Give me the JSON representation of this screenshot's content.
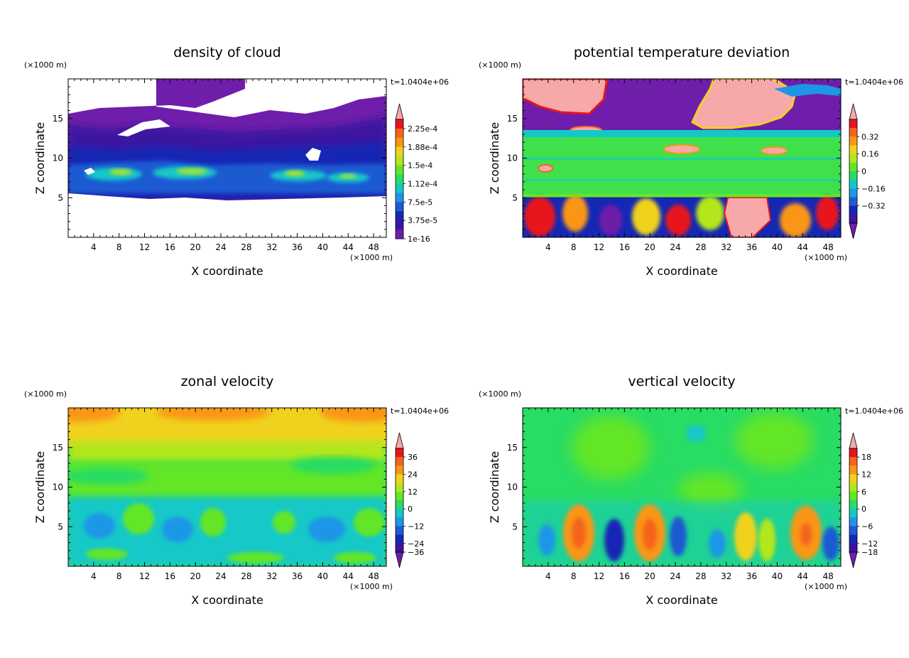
{
  "chart_data": [
    {
      "type": "heatmap",
      "title": "density of cloud",
      "xlabel": "X coordinate",
      "ylabel": "Z coordinate",
      "x_unit": "(×1000 m)",
      "y_unit": "(×1000 m)",
      "time_label": "t=1.0404e+06",
      "xlim": [
        0,
        50
      ],
      "ylim": [
        0,
        20
      ],
      "x_ticks": [
        4,
        8,
        12,
        16,
        20,
        24,
        28,
        32,
        36,
        40,
        44,
        48
      ],
      "y_ticks": [
        5,
        10,
        15
      ],
      "colorbar_labels": [
        "2.25e-4",
        "1.88e-4",
        "1.5e-4",
        "1.12e-4",
        "7.5e-5",
        "3.75e-5",
        "1e-16"
      ],
      "colorbar_colors": [
        "#f7a8a8",
        "#e8141e",
        "#f5641e",
        "#fa9614",
        "#f0d21e",
        "#b4e61e",
        "#64e628",
        "#28dc64",
        "#14c8c8",
        "#1e96e6",
        "#1e5ad2",
        "#1428b4",
        "#3c14a0",
        "#6e1eaa"
      ],
      "colorbar_arrow_bottom": false,
      "has_white_background": true
    },
    {
      "type": "heatmap",
      "title": "potential temperature deviation",
      "xlabel": "X coordinate",
      "ylabel": "Z coordinate",
      "x_unit": "(×1000 m)",
      "y_unit": "(×1000 m)",
      "time_label": "t=1.0404e+06",
      "xlim": [
        0,
        50
      ],
      "ylim": [
        0,
        20
      ],
      "x_ticks": [
        4,
        8,
        12,
        16,
        20,
        24,
        28,
        32,
        36,
        40,
        44,
        48
      ],
      "y_ticks": [
        5,
        10,
        15
      ],
      "colorbar_labels": [
        "0.32",
        "0.16",
        "0",
        "−0.16",
        "−0.32"
      ],
      "colorbar_colors": [
        "#f7a8a8",
        "#e8141e",
        "#f5641e",
        "#fa9614",
        "#f0d21e",
        "#b4e61e",
        "#64e628",
        "#28dc64",
        "#14c8c8",
        "#1e96e6",
        "#1e5ad2",
        "#1428b4",
        "#3c14a0",
        "#6e1eaa"
      ],
      "colorbar_arrow_bottom": true
    },
    {
      "type": "heatmap",
      "title": "zonal velocity",
      "xlabel": "X coordinate",
      "ylabel": "Z coordinate",
      "x_unit": "(×1000 m)",
      "y_unit": "(×1000 m)",
      "time_label": "t=1.0404e+06",
      "xlim": [
        0,
        50
      ],
      "ylim": [
        0,
        20
      ],
      "x_ticks": [
        4,
        8,
        12,
        16,
        20,
        24,
        28,
        32,
        36,
        40,
        44,
        48
      ],
      "y_ticks": [
        5,
        10,
        15
      ],
      "colorbar_labels": [
        "36",
        "24",
        "12",
        "0",
        "−12",
        "−24",
        "−36"
      ],
      "colorbar_colors": [
        "#f7a8a8",
        "#e8141e",
        "#f5641e",
        "#fa9614",
        "#f0d21e",
        "#b4e61e",
        "#64e628",
        "#28dc64",
        "#14c8c8",
        "#1e96e6",
        "#1e5ad2",
        "#1428b4",
        "#3c14a0",
        "#6e1eaa"
      ],
      "colorbar_arrow_bottom": true
    },
    {
      "type": "heatmap",
      "title": "vertical velocity",
      "xlabel": "X coordinate",
      "ylabel": "Z coordinate",
      "x_unit": "(×1000 m)",
      "y_unit": "(×1000 m)",
      "time_label": "t=1.0404e+06",
      "xlim": [
        0,
        50
      ],
      "ylim": [
        0,
        20
      ],
      "x_ticks": [
        4,
        8,
        12,
        16,
        20,
        24,
        28,
        32,
        36,
        40,
        44,
        48
      ],
      "y_ticks": [
        5,
        10,
        15
      ],
      "colorbar_labels": [
        "18",
        "12",
        "6",
        "0",
        "−6",
        "−12",
        "−18"
      ],
      "colorbar_colors": [
        "#f7a8a8",
        "#e8141e",
        "#f5641e",
        "#fa9614",
        "#f0d21e",
        "#b4e61e",
        "#64e628",
        "#28dc64",
        "#14c8c8",
        "#1e96e6",
        "#1e5ad2",
        "#1428b4",
        "#3c14a0",
        "#6e1eaa"
      ],
      "colorbar_arrow_bottom": true
    }
  ]
}
